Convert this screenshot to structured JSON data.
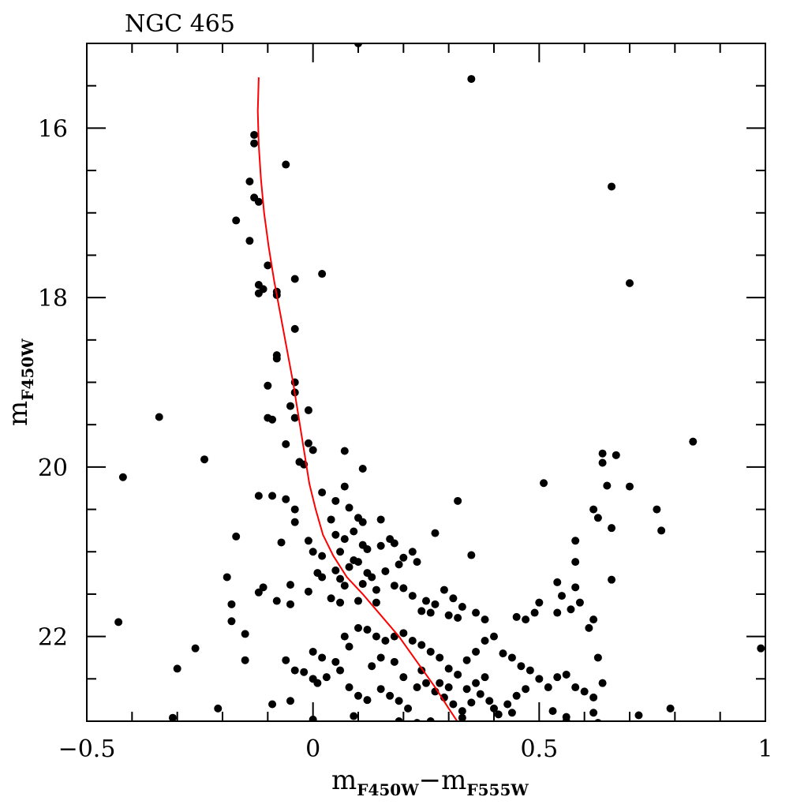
{
  "chart_data": {
    "type": "scatter",
    "title": "NGC 465",
    "xlabel": {
      "main": "m",
      "sub1": "F450W",
      "sep": "−m",
      "sub2": "F555W"
    },
    "ylabel": {
      "main": "m",
      "sub": "F450W"
    },
    "xlim": [
      -0.5,
      1.0
    ],
    "ylim": [
      23.0,
      15.0
    ],
    "y_inverted": true,
    "grid": false,
    "x_ticks": [
      {
        "v": -0.5,
        "label": "−0.5"
      },
      {
        "v": 0,
        "label": "0"
      },
      {
        "v": 0.5,
        "label": "0.5"
      },
      {
        "v": 1,
        "label": "1"
      }
    ],
    "x_minor_step": 0.1,
    "y_ticks": [
      {
        "v": 16,
        "label": "16"
      },
      {
        "v": 18,
        "label": "18"
      },
      {
        "v": 20,
        "label": "20"
      },
      {
        "v": 22,
        "label": "22"
      }
    ],
    "y_minor_step": 0.5,
    "series": [
      {
        "type": "scatter",
        "color": "#000000",
        "points": [
          [
            0.1,
            15.0
          ],
          [
            0.35,
            15.42
          ],
          [
            -0.13,
            16.08
          ],
          [
            -0.13,
            16.18
          ],
          [
            -0.06,
            16.43
          ],
          [
            -0.14,
            16.63
          ],
          [
            -0.13,
            16.82
          ],
          [
            -0.12,
            16.87
          ],
          [
            -0.17,
            17.09
          ],
          [
            -0.14,
            17.33
          ],
          [
            0.66,
            16.69
          ],
          [
            -0.1,
            17.62
          ],
          [
            -0.04,
            17.78
          ],
          [
            0.02,
            17.72
          ],
          [
            -0.12,
            17.85
          ],
          [
            -0.11,
            17.9
          ],
          [
            -0.12,
            17.95
          ],
          [
            -0.08,
            17.93
          ],
          [
            -0.08,
            17.97
          ],
          [
            0.7,
            17.83
          ],
          [
            -0.04,
            18.37
          ],
          [
            -0.08,
            18.68
          ],
          [
            -0.08,
            18.72
          ],
          [
            -0.1,
            19.04
          ],
          [
            -0.04,
            19.0
          ],
          [
            -0.04,
            19.12
          ],
          [
            -0.05,
            19.28
          ],
          [
            -0.01,
            19.33
          ],
          [
            -0.04,
            19.42
          ],
          [
            -0.1,
            19.42
          ],
          [
            -0.09,
            19.44
          ],
          [
            -0.34,
            19.41
          ],
          [
            -0.06,
            19.73
          ],
          [
            -0.01,
            19.72
          ],
          [
            0.0,
            19.8
          ],
          [
            -0.03,
            19.94
          ],
          [
            -0.02,
            19.97
          ],
          [
            0.07,
            19.81
          ],
          [
            -0.24,
            19.91
          ],
          [
            0.84,
            19.7
          ],
          [
            0.11,
            20.02
          ],
          [
            0.51,
            20.19
          ],
          [
            -0.42,
            20.12
          ],
          [
            -0.12,
            20.34
          ],
          [
            -0.09,
            20.34
          ],
          [
            -0.06,
            20.38
          ],
          [
            0.02,
            20.3
          ],
          [
            0.07,
            20.23
          ],
          [
            0.05,
            20.4
          ],
          [
            0.08,
            20.48
          ],
          [
            0.04,
            20.62
          ],
          [
            0.1,
            20.6
          ],
          [
            0.11,
            20.65
          ],
          [
            0.15,
            20.62
          ],
          [
            -0.04,
            20.5
          ],
          [
            -0.04,
            20.65
          ],
          [
            0.32,
            20.4
          ],
          [
            0.64,
            19.84
          ],
          [
            0.64,
            19.95
          ],
          [
            0.65,
            20.22
          ],
          [
            0.62,
            20.5
          ],
          [
            0.63,
            20.6
          ],
          [
            0.67,
            19.86
          ],
          [
            0.7,
            20.23
          ],
          [
            0.76,
            20.5
          ],
          [
            0.77,
            20.75
          ],
          [
            0.66,
            20.72
          ],
          [
            -0.17,
            20.82
          ],
          [
            -0.07,
            20.89
          ],
          [
            -0.01,
            20.87
          ],
          [
            0.0,
            21.0
          ],
          [
            0.05,
            20.8
          ],
          [
            0.07,
            20.85
          ],
          [
            0.09,
            20.76
          ],
          [
            0.11,
            20.92
          ],
          [
            0.12,
            20.97
          ],
          [
            0.15,
            20.93
          ],
          [
            0.17,
            20.85
          ],
          [
            0.18,
            20.9
          ],
          [
            0.2,
            21.07
          ],
          [
            0.22,
            21.0
          ],
          [
            0.23,
            21.12
          ],
          [
            0.27,
            20.78
          ],
          [
            0.35,
            21.04
          ],
          [
            0.06,
            21.0
          ],
          [
            0.02,
            21.05
          ],
          [
            0.09,
            21.1
          ],
          [
            0.1,
            21.12
          ],
          [
            0.08,
            21.18
          ],
          [
            0.12,
            21.25
          ],
          [
            0.13,
            21.3
          ],
          [
            0.16,
            21.23
          ],
          [
            0.19,
            21.15
          ],
          [
            0.01,
            21.25
          ],
          [
            0.02,
            21.3
          ],
          [
            0.05,
            21.22
          ],
          [
            0.06,
            21.32
          ],
          [
            0.07,
            21.4
          ],
          [
            0.11,
            21.38
          ],
          [
            0.14,
            21.45
          ],
          [
            0.18,
            21.4
          ],
          [
            0.2,
            21.43
          ],
          [
            0.22,
            21.52
          ],
          [
            0.25,
            21.58
          ],
          [
            0.27,
            21.62
          ],
          [
            0.29,
            21.45
          ],
          [
            0.31,
            21.55
          ],
          [
            0.33,
            21.65
          ],
          [
            0.24,
            21.7
          ],
          [
            0.26,
            21.72
          ],
          [
            0.3,
            21.75
          ],
          [
            0.32,
            21.78
          ],
          [
            0.36,
            21.72
          ],
          [
            0.38,
            21.8
          ],
          [
            -0.19,
            21.3
          ],
          [
            -0.11,
            21.42
          ],
          [
            -0.12,
            21.48
          ],
          [
            -0.05,
            21.39
          ],
          [
            -0.01,
            21.47
          ],
          [
            0.04,
            21.55
          ],
          [
            0.06,
            21.6
          ],
          [
            0.1,
            21.58
          ],
          [
            0.14,
            21.6
          ],
          [
            -0.08,
            21.58
          ],
          [
            -0.05,
            21.62
          ],
          [
            -0.18,
            21.62
          ],
          [
            0.58,
            20.87
          ],
          [
            0.58,
            21.12
          ],
          [
            0.54,
            21.36
          ],
          [
            0.58,
            21.42
          ],
          [
            0.55,
            21.52
          ],
          [
            0.59,
            21.6
          ],
          [
            0.66,
            21.33
          ],
          [
            0.57,
            21.68
          ],
          [
            0.54,
            21.72
          ],
          [
            0.5,
            21.6
          ],
          [
            0.49,
            21.72
          ],
          [
            0.47,
            21.8
          ],
          [
            0.45,
            21.77
          ],
          [
            -0.18,
            21.82
          ],
          [
            -0.43,
            21.83
          ],
          [
            -0.15,
            21.97
          ],
          [
            -0.15,
            22.28
          ],
          [
            -0.26,
            22.14
          ],
          [
            -0.3,
            22.38
          ],
          [
            -0.06,
            22.28
          ],
          [
            -0.04,
            22.4
          ],
          [
            -0.02,
            22.42
          ],
          [
            0.0,
            22.18
          ],
          [
            0.02,
            22.25
          ],
          [
            0.0,
            22.5
          ],
          [
            0.01,
            22.55
          ],
          [
            0.03,
            22.48
          ],
          [
            0.05,
            22.3
          ],
          [
            0.07,
            22.0
          ],
          [
            0.08,
            22.12
          ],
          [
            0.1,
            21.9
          ],
          [
            0.12,
            21.92
          ],
          [
            0.14,
            22.0
          ],
          [
            0.16,
            22.05
          ],
          [
            0.18,
            22.0
          ],
          [
            0.2,
            21.96
          ],
          [
            0.22,
            22.05
          ],
          [
            0.24,
            22.1
          ],
          [
            0.26,
            22.18
          ],
          [
            0.28,
            22.25
          ],
          [
            0.3,
            22.38
          ],
          [
            0.32,
            22.45
          ],
          [
            0.34,
            22.28
          ],
          [
            0.36,
            22.18
          ],
          [
            0.38,
            22.05
          ],
          [
            0.4,
            22.0
          ],
          [
            0.42,
            22.2
          ],
          [
            0.44,
            22.25
          ],
          [
            0.46,
            22.35
          ],
          [
            0.48,
            22.4
          ],
          [
            0.5,
            22.5
          ],
          [
            0.52,
            22.6
          ],
          [
            0.54,
            22.48
          ],
          [
            0.56,
            22.45
          ],
          [
            0.58,
            22.6
          ],
          [
            0.6,
            22.65
          ],
          [
            0.62,
            22.72
          ],
          [
            0.63,
            22.25
          ],
          [
            0.64,
            22.55
          ],
          [
            0.61,
            21.9
          ],
          [
            0.62,
            21.8
          ],
          [
            0.08,
            22.6
          ],
          [
            0.1,
            22.7
          ],
          [
            0.12,
            22.75
          ],
          [
            0.15,
            22.62
          ],
          [
            0.17,
            22.7
          ],
          [
            0.19,
            22.76
          ],
          [
            0.21,
            22.85
          ],
          [
            0.23,
            22.6
          ],
          [
            0.25,
            22.55
          ],
          [
            0.27,
            22.65
          ],
          [
            0.29,
            22.72
          ],
          [
            0.31,
            22.8
          ],
          [
            0.33,
            22.88
          ],
          [
            0.35,
            22.78
          ],
          [
            0.37,
            22.68
          ],
          [
            0.39,
            22.76
          ],
          [
            0.4,
            22.85
          ],
          [
            0.41,
            22.92
          ],
          [
            0.43,
            22.8
          ],
          [
            0.45,
            22.7
          ],
          [
            0.47,
            22.62
          ],
          [
            -0.09,
            22.8
          ],
          [
            -0.05,
            22.76
          ],
          [
            -0.21,
            22.85
          ],
          [
            0.0,
            22.98
          ],
          [
            0.09,
            22.94
          ],
          [
            0.19,
            23.0
          ],
          [
            0.23,
            23.02
          ],
          [
            0.26,
            23.0
          ],
          [
            0.33,
            22.96
          ],
          [
            0.53,
            22.88
          ],
          [
            0.56,
            22.95
          ],
          [
            0.62,
            22.9
          ],
          [
            0.72,
            22.93
          ],
          [
            0.79,
            22.85
          ],
          [
            0.99,
            22.14
          ],
          [
            -0.31,
            22.96
          ],
          [
            0.63,
            23.02
          ],
          [
            0.56,
            23.0
          ],
          [
            0.36,
            22.55
          ],
          [
            0.38,
            22.48
          ],
          [
            0.34,
            22.62
          ],
          [
            0.3,
            22.6
          ],
          [
            0.28,
            22.55
          ],
          [
            0.44,
            22.9
          ],
          [
            0.06,
            22.4
          ],
          [
            0.13,
            22.35
          ],
          [
            0.15,
            22.25
          ],
          [
            0.18,
            22.3
          ],
          [
            0.2,
            22.48
          ],
          [
            0.24,
            22.4
          ]
        ]
      },
      {
        "type": "line",
        "color": "#ff0000",
        "points": [
          [
            -0.12,
            15.4
          ],
          [
            -0.122,
            15.8
          ],
          [
            -0.12,
            16.2
          ],
          [
            -0.115,
            16.6
          ],
          [
            -0.108,
            17.0
          ],
          [
            -0.098,
            17.4
          ],
          [
            -0.086,
            17.8
          ],
          [
            -0.072,
            18.2
          ],
          [
            -0.058,
            18.6
          ],
          [
            -0.044,
            19.0
          ],
          [
            -0.032,
            19.4
          ],
          [
            -0.02,
            19.8
          ],
          [
            -0.008,
            20.2
          ],
          [
            0.006,
            20.5
          ],
          [
            0.022,
            20.8
          ],
          [
            0.045,
            21.05
          ],
          [
            0.075,
            21.3
          ],
          [
            0.11,
            21.5
          ],
          [
            0.15,
            21.75
          ],
          [
            0.19,
            22.0
          ],
          [
            0.23,
            22.3
          ],
          [
            0.27,
            22.6
          ],
          [
            0.3,
            22.85
          ],
          [
            0.325,
            23.05
          ]
        ]
      }
    ]
  }
}
